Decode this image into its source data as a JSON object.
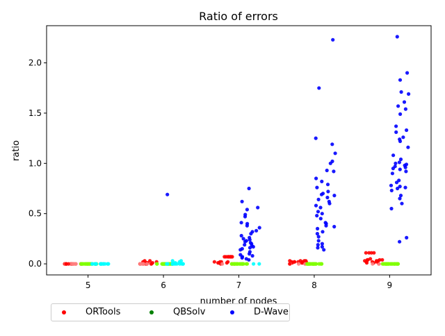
{
  "chart_data": {
    "type": "scatter",
    "title": "Ratio of errors",
    "xlabel": "number of nodes",
    "ylabel": "ratio",
    "x_ticks": [
      "5",
      "6",
      "7",
      "8",
      "9"
    ],
    "y_ticks": [
      "0.0",
      "0.5",
      "1.0",
      "1.5",
      "2.0"
    ],
    "xlim": [
      4.45,
      9.55
    ],
    "ylim": [
      -0.11,
      2.37
    ],
    "grid": false,
    "legend_position": "below, outside plot",
    "colors": {
      "ORTools": "#ff0000",
      "ORTools_light": "#ff8080",
      "QBSolv": "#80ff00",
      "QBSolv_legend": "#008000",
      "DWave": "#0000ff",
      "DWave_cyan": "#00ffff"
    },
    "series": [
      {
        "name": "ORTools",
        "points": {
          "5": [
            0,
            0,
            0,
            0,
            0,
            0,
            0,
            0,
            0,
            0,
            0,
            0,
            0,
            0,
            0,
            0,
            0,
            0,
            0,
            0
          ],
          "6": [
            0,
            0,
            0,
            0.01,
            0.02,
            0.03,
            0,
            0,
            0,
            0,
            0.01,
            0,
            0.02,
            0.03,
            0,
            0,
            0,
            0,
            0.01,
            0
          ],
          "7": [
            0.07,
            0.07,
            0.07,
            0.07,
            0.07,
            0.07,
            0.07,
            0.07,
            0.02,
            0.02,
            0.01,
            0.01,
            0.02,
            0.01,
            0.02,
            0.01,
            0,
            0,
            0,
            0
          ],
          "8": [
            0.03,
            0.03,
            0.02,
            0.02,
            0.03,
            0.02,
            0.02,
            0.03,
            0.01,
            0.01,
            0.02,
            0.01,
            0,
            0,
            0,
            0,
            0.01,
            0,
            0,
            0.02
          ],
          "9": [
            0.11,
            0.11,
            0.11,
            0.11,
            0.05,
            0.04,
            0.04,
            0.04,
            0.03,
            0.03,
            0.02,
            0.02,
            0.01,
            0.01,
            0,
            0,
            0,
            0.04,
            0.03,
            0.02
          ]
        }
      },
      {
        "name": "QBSolv",
        "points": {
          "5": [
            0,
            0,
            0,
            0,
            0,
            0,
            0,
            0,
            0,
            0,
            0,
            0,
            0,
            0,
            0,
            0,
            0,
            0,
            0,
            0,
            0,
            0,
            0,
            0,
            0
          ],
          "6": [
            0,
            0,
            0,
            0,
            0,
            0,
            0,
            0,
            0,
            0,
            0,
            0,
            0,
            0,
            0,
            0,
            0,
            0,
            0,
            0,
            0,
            0,
            0,
            0,
            0
          ],
          "7": [
            0,
            0,
            0,
            0,
            0,
            0,
            0,
            0,
            0,
            0,
            0,
            0,
            0,
            0,
            0,
            0,
            0,
            0,
            0,
            0
          ],
          "8": [
            0,
            0,
            0,
            0,
            0,
            0,
            0,
            0,
            0,
            0,
            0,
            0,
            0,
            0,
            0,
            0,
            0,
            0,
            0,
            0,
            0,
            0,
            0,
            0,
            0
          ],
          "9": [
            0,
            0,
            0,
            0,
            0,
            0,
            0,
            0,
            0,
            0,
            0,
            0,
            0,
            0,
            0,
            0,
            0,
            0,
            0,
            0,
            0,
            0,
            0,
            0,
            0
          ]
        }
      },
      {
        "name": "D-Wave",
        "points": {
          "5": [
            0,
            0,
            0,
            0,
            0,
            0,
            0,
            0,
            0,
            0,
            0,
            0,
            0,
            0,
            0,
            0
          ],
          "6": [
            0.69,
            0.03,
            0.03,
            0.02,
            0.01,
            0,
            0,
            0,
            0,
            0,
            0,
            0,
            0,
            0,
            0,
            0
          ],
          "7": [
            0.75,
            0.62,
            0.56,
            0.54,
            0.49,
            0.47,
            0.41,
            0.4,
            0.38,
            0.36,
            0.33,
            0.32,
            0.3,
            0.28,
            0.26,
            0.25,
            0.24,
            0.23,
            0.22,
            0.21,
            0.2,
            0.19,
            0.18,
            0.17,
            0.16,
            0.15,
            0.14,
            0.12,
            0.1,
            0.09,
            0.08,
            0.07,
            0.06,
            0.05,
            0.04,
            0,
            0
          ],
          "8": [
            2.23,
            1.75,
            1.25,
            1.19,
            1.1,
            1.02,
            1.0,
            0.93,
            0.92,
            0.85,
            0.82,
            0.79,
            0.76,
            0.72,
            0.7,
            0.69,
            0.68,
            0.66,
            0.64,
            0.62,
            0.6,
            0.58,
            0.56,
            0.52,
            0.5,
            0.48,
            0.45,
            0.41,
            0.4,
            0.38,
            0.37,
            0.35,
            0.32,
            0.3,
            0.27,
            0.23,
            0.2,
            0.19,
            0.17,
            0.16,
            0.14
          ],
          "9": [
            2.26,
            1.9,
            1.83,
            1.71,
            1.69,
            1.61,
            1.57,
            1.54,
            1.49,
            1.37,
            1.33,
            1.31,
            1.26,
            1.24,
            1.22,
            1.16,
            1.08,
            1.04,
            1.01,
            1.0,
            0.99,
            0.98,
            0.97,
            0.96,
            0.95,
            0.94,
            0.92,
            0.9,
            0.83,
            0.81,
            0.78,
            0.77,
            0.76,
            0.75,
            0.73,
            0.68,
            0.65,
            0.6,
            0.55,
            0.26,
            0.22
          ]
        }
      }
    ]
  }
}
